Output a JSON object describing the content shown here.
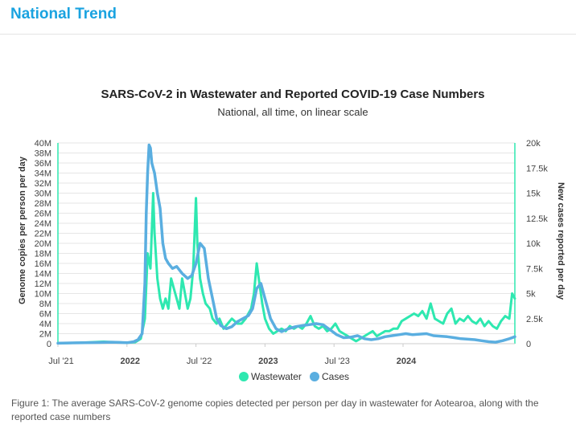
{
  "section": {
    "title": "National Trend"
  },
  "caption": "Figure 1: The average SARS-CoV-2 genome copies detected per person per day in wastewater for Aotearoa, along with the reported case numbers",
  "colors": {
    "wastewater": "#2ee8b0",
    "cases": "#5aaee0",
    "title_blue": "#1aa3e0"
  },
  "chart_data": {
    "type": "line",
    "title": "SARS-CoV-2 in Wastewater and Reported COVID-19 Case Numbers",
    "subtitle": "National, all time, on linear scale",
    "ylabel_left": "Genome copies per person per day",
    "ylabel_right": "New cases reported per day",
    "x_range": [
      2021.5,
      2024.81
    ],
    "x_ticks": [
      {
        "value": 2021.5,
        "label": "Jul '21",
        "bold": false
      },
      {
        "value": 2022.0,
        "label": "2022",
        "bold": true
      },
      {
        "value": 2022.5,
        "label": "Jul '22",
        "bold": false
      },
      {
        "value": 2023.0,
        "label": "2023",
        "bold": true
      },
      {
        "value": 2023.5,
        "label": "Jul '23",
        "bold": false
      },
      {
        "value": 2024.0,
        "label": "2024",
        "bold": true
      }
    ],
    "y_left": {
      "min": 0,
      "max": 40000000,
      "ticks": [
        {
          "value": 0,
          "label": "0"
        },
        {
          "value": 2000000,
          "label": "2M"
        },
        {
          "value": 4000000,
          "label": "4M"
        },
        {
          "value": 6000000,
          "label": "6M"
        },
        {
          "value": 8000000,
          "label": "8M"
        },
        {
          "value": 10000000,
          "label": "10M"
        },
        {
          "value": 12000000,
          "label": "12M"
        },
        {
          "value": 14000000,
          "label": "14M"
        },
        {
          "value": 16000000,
          "label": "16M"
        },
        {
          "value": 18000000,
          "label": "18M"
        },
        {
          "value": 20000000,
          "label": "20M"
        },
        {
          "value": 22000000,
          "label": "22M"
        },
        {
          "value": 24000000,
          "label": "24M"
        },
        {
          "value": 26000000,
          "label": "26M"
        },
        {
          "value": 28000000,
          "label": "28M"
        },
        {
          "value": 30000000,
          "label": "30M"
        },
        {
          "value": 32000000,
          "label": "32M"
        },
        {
          "value": 34000000,
          "label": "34M"
        },
        {
          "value": 36000000,
          "label": "36M"
        },
        {
          "value": 38000000,
          "label": "38M"
        },
        {
          "value": 40000000,
          "label": "40M"
        }
      ]
    },
    "y_right": {
      "min": 0,
      "max": 20000,
      "ticks": [
        {
          "value": 0,
          "label": "0"
        },
        {
          "value": 2500,
          "label": "2.5k"
        },
        {
          "value": 5000,
          "label": "5k"
        },
        {
          "value": 7500,
          "label": "7.5k"
        },
        {
          "value": 10000,
          "label": "10k"
        },
        {
          "value": 12500,
          "label": "12.5k"
        },
        {
          "value": 15000,
          "label": "15k"
        },
        {
          "value": 17500,
          "label": "17.5k"
        },
        {
          "value": 20000,
          "label": "20k"
        }
      ]
    },
    "legend": {
      "position": "bottom-center",
      "items": [
        "Wastewater",
        "Cases"
      ]
    },
    "series": [
      {
        "name": "Wastewater",
        "axis": "left",
        "x": [
          2021.5,
          2021.58,
          2021.66,
          2021.75,
          2021.83,
          2021.92,
          2022.0,
          2022.06,
          2022.1,
          2022.13,
          2022.15,
          2022.17,
          2022.19,
          2022.2,
          2022.22,
          2022.24,
          2022.26,
          2022.28,
          2022.3,
          2022.32,
          2022.34,
          2022.36,
          2022.38,
          2022.4,
          2022.42,
          2022.44,
          2022.46,
          2022.48,
          2022.5,
          2022.51,
          2022.53,
          2022.55,
          2022.57,
          2022.6,
          2022.62,
          2022.65,
          2022.67,
          2022.7,
          2022.73,
          2022.76,
          2022.8,
          2022.83,
          2022.86,
          2022.88,
          2022.9,
          2022.92,
          2022.94,
          2022.96,
          2022.98,
          2023.0,
          2023.03,
          2023.06,
          2023.09,
          2023.12,
          2023.15,
          2023.18,
          2023.21,
          2023.24,
          2023.27,
          2023.3,
          2023.33,
          2023.36,
          2023.39,
          2023.42,
          2023.45,
          2023.48,
          2023.51,
          2023.54,
          2023.57,
          2023.6,
          2023.63,
          2023.66,
          2023.69,
          2023.72,
          2023.75,
          2023.78,
          2023.81,
          2023.84,
          2023.87,
          2023.9,
          2023.93,
          2023.96,
          2023.99,
          2024.02,
          2024.05,
          2024.08,
          2024.11,
          2024.14,
          2024.17,
          2024.2,
          2024.23,
          2024.26,
          2024.29,
          2024.32,
          2024.35,
          2024.38,
          2024.41,
          2024.44,
          2024.47,
          2024.5,
          2024.53,
          2024.56,
          2024.59,
          2024.62,
          2024.65,
          2024.68,
          2024.71,
          2024.74,
          2024.77,
          2024.79,
          2024.81
        ],
        "y": [
          100000,
          150000,
          200000,
          300000,
          400000,
          300000,
          200000,
          300000,
          1000000,
          5000000,
          18000000,
          15000000,
          30000000,
          22000000,
          13000000,
          9000000,
          7000000,
          9000000,
          7000000,
          13000000,
          11000000,
          9000000,
          7000000,
          13000000,
          10000000,
          7000000,
          9000000,
          15000000,
          29000000,
          20000000,
          13000000,
          10000000,
          8000000,
          7000000,
          5000000,
          4000000,
          5000000,
          3000000,
          4000000,
          5000000,
          4000000,
          4000000,
          5000000,
          6000000,
          7000000,
          10000000,
          16000000,
          12000000,
          8000000,
          5000000,
          3000000,
          2000000,
          2500000,
          3000000,
          2500000,
          3500000,
          3000000,
          3500000,
          3000000,
          4000000,
          5500000,
          3500000,
          3000000,
          3500000,
          2500000,
          3000000,
          4000000,
          2500000,
          2000000,
          1500000,
          1000000,
          500000,
          1000000,
          1500000,
          2000000,
          2500000,
          1500000,
          2000000,
          2500000,
          2500000,
          3000000,
          3000000,
          4500000,
          5000000,
          5500000,
          6000000,
          5500000,
          6500000,
          5000000,
          8000000,
          5000000,
          4500000,
          4000000,
          6000000,
          7000000,
          4000000,
          5000000,
          4500000,
          5500000,
          4500000,
          4000000,
          5000000,
          3500000,
          4500000,
          3500000,
          3000000,
          4500000,
          5500000,
          5000000,
          10000000,
          9000000
        ]
      },
      {
        "name": "Cases",
        "axis": "right",
        "x": [
          2021.5,
          2021.6,
          2021.7,
          2021.8,
          2021.9,
          2022.0,
          2022.05,
          2022.08,
          2022.11,
          2022.13,
          2022.14,
          2022.15,
          2022.16,
          2022.17,
          2022.18,
          2022.19,
          2022.2,
          2022.22,
          2022.24,
          2022.26,
          2022.28,
          2022.3,
          2022.33,
          2022.36,
          2022.4,
          2022.44,
          2022.47,
          2022.5,
          2022.53,
          2022.56,
          2022.59,
          2022.62,
          2022.65,
          2022.68,
          2022.72,
          2022.76,
          2022.8,
          2022.84,
          2022.88,
          2022.91,
          2022.94,
          2022.97,
          2023.0,
          2023.04,
          2023.08,
          2023.12,
          2023.17,
          2023.22,
          2023.27,
          2023.32,
          2023.37,
          2023.42,
          2023.47,
          2023.52,
          2023.57,
          2023.62,
          2023.67,
          2023.72,
          2023.77,
          2023.82,
          2023.87,
          2023.92,
          2023.97,
          2024.02,
          2024.07,
          2024.12,
          2024.17,
          2024.22,
          2024.27,
          2024.32,
          2024.37,
          2024.42,
          2024.47,
          2024.52,
          2024.57,
          2024.62,
          2024.67,
          2024.72,
          2024.77,
          2024.81
        ],
        "y": [
          50,
          80,
          100,
          120,
          150,
          100,
          200,
          400,
          1000,
          6000,
          13000,
          17000,
          19800,
          19500,
          18000,
          17500,
          17000,
          15000,
          13500,
          10000,
          8500,
          8000,
          7500,
          7700,
          7000,
          6500,
          6800,
          8000,
          10000,
          9500,
          6500,
          4500,
          2500,
          1800,
          1500,
          1700,
          2200,
          2500,
          2800,
          3500,
          5500,
          6000,
          4500,
          2500,
          1500,
          1200,
          1500,
          1700,
          1800,
          1900,
          2000,
          1900,
          1400,
          900,
          600,
          650,
          800,
          500,
          400,
          500,
          700,
          800,
          900,
          1000,
          900,
          950,
          1000,
          800,
          750,
          700,
          600,
          500,
          450,
          400,
          300,
          200,
          150,
          300,
          500,
          700
        ]
      }
    ]
  }
}
